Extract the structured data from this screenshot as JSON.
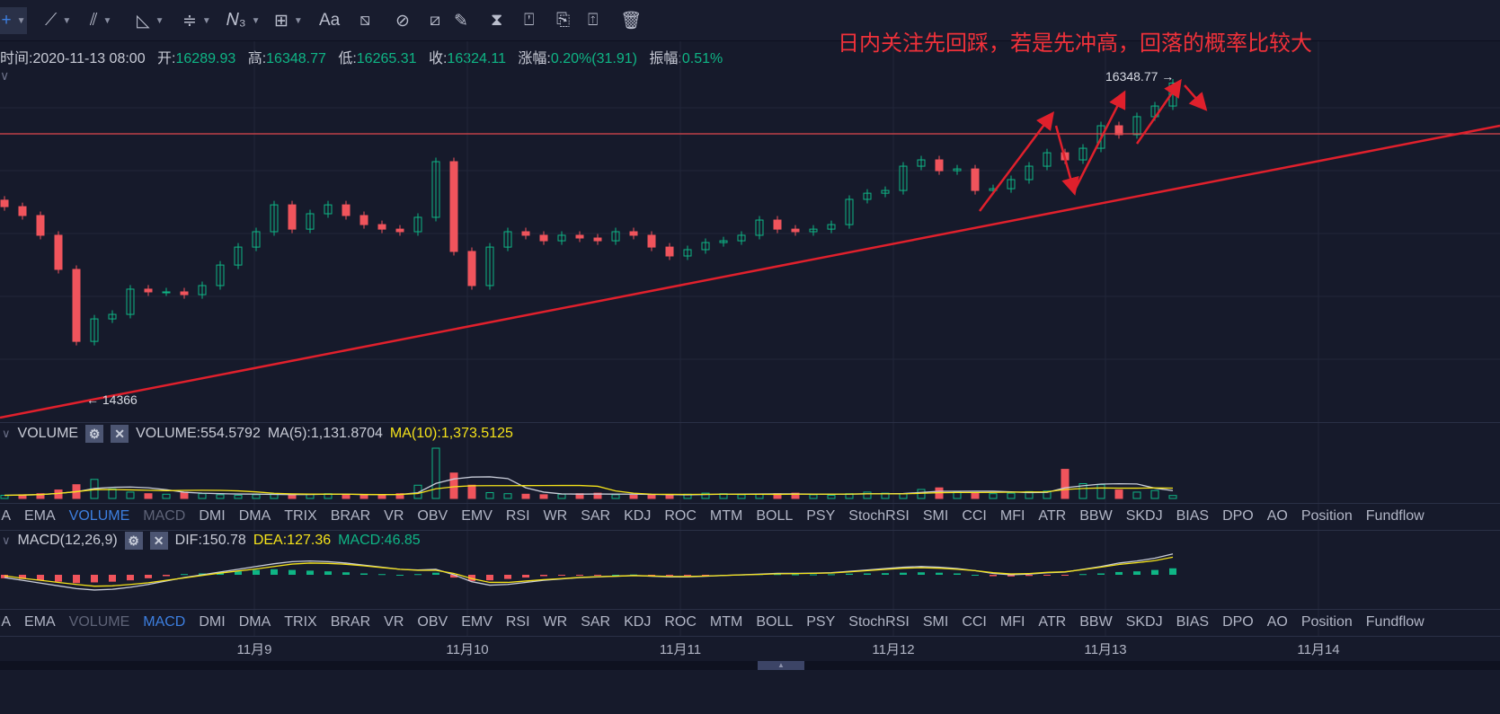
{
  "toolbar": {
    "tools": [
      {
        "name": "crosshair-icon",
        "glyph": "+",
        "active": true,
        "caret": true
      },
      {
        "name": "trendline-icon",
        "glyph": "⟋",
        "caret": true
      },
      {
        "name": "parallel-channel-icon",
        "glyph": "⫽",
        "caret": true
      },
      {
        "name": "triangle-ruler-icon",
        "glyph": "◺",
        "caret": true
      },
      {
        "name": "horizontal-lines-icon",
        "glyph": "≑",
        "caret": true
      },
      {
        "name": "wave-pattern-icon",
        "glyph": "𝑁₃",
        "caret": true
      },
      {
        "name": "rectangle-icon",
        "glyph": "⊞",
        "caret": true
      },
      {
        "name": "text-icon",
        "glyph": "Aa"
      },
      {
        "name": "price-range-icon",
        "glyph": "⧅"
      },
      {
        "name": "eraser-icon",
        "glyph": "⊘"
      },
      {
        "name": "ruler-icon",
        "glyph": "⧄"
      },
      {
        "name": "brush-icon",
        "glyph": "✎"
      },
      {
        "name": "candle-tool-icon",
        "glyph": "⧗"
      },
      {
        "name": "lock-icon",
        "glyph": "⍞"
      },
      {
        "name": "bookmark-icon",
        "glyph": "⎘"
      },
      {
        "name": "edit-note-icon",
        "glyph": "⍐"
      },
      {
        "name": "trash-icon",
        "glyph": "🗑"
      }
    ]
  },
  "info": {
    "time_label": "时间:",
    "time": "2020-11-13 08:00",
    "open_label": "开:",
    "open": "16289.93",
    "high_label": "高:",
    "high": "16348.77",
    "low_label": "低:",
    "low": "16265.31",
    "close_label": "收:",
    "close": "16324.11",
    "change_label": "涨幅:",
    "change": "0.20%(31.91)",
    "amp_label": "振幅:",
    "amp": "0.51%"
  },
  "annotation": "日内关注先回踩，若是先冲高，回落的概率比较大",
  "colors": {
    "up": "#0fb585",
    "down": "#f0545c",
    "drawing": "#e0202c",
    "bg": "#161a2b",
    "ma5": "#c9cdd9",
    "ma10": "#f5e31a"
  },
  "main": {
    "high_marker": "16348.77",
    "low_marker": "14366",
    "horizontal_level": 16010,
    "closes": [
      15560,
      15505,
      15383,
      15172,
      14727,
      14866,
      14894,
      15050,
      15033,
      15033,
      15016,
      15072,
      15199,
      15310,
      15405,
      15571,
      15421,
      15516,
      15571,
      15505,
      15449,
      15421,
      15405,
      15494,
      15838,
      15283,
      15072,
      15310,
      15405,
      15383,
      15349,
      15383,
      15366,
      15349,
      15405,
      15383,
      15310,
      15255,
      15294,
      15338,
      15349,
      15383,
      15477,
      15421,
      15405,
      15421,
      15449,
      15605,
      15643,
      15660,
      15810,
      15849,
      15782,
      15793,
      15660,
      15671,
      15727,
      15810,
      15893,
      15849,
      15921,
      16060,
      16005,
      16116,
      16182,
      16324.11
    ]
  },
  "volume": {
    "title": "VOLUME",
    "value": "VOLUME:554.5792",
    "ma5": "MA(5):1,131.8704",
    "ma10": "MA(10):1,373.5125",
    "values": [
      600,
      700,
      900,
      1600,
      2600,
      3600,
      1800,
      1200,
      900,
      800,
      1200,
      900,
      700,
      600,
      700,
      900,
      700,
      800,
      900,
      700,
      600,
      700,
      900,
      2500,
      9500,
      4800,
      2500,
      1100,
      900,
      800,
      700,
      800,
      900,
      1000,
      700,
      600,
      600,
      700,
      800,
      1000,
      900,
      700,
      800,
      900,
      1000,
      700,
      600,
      900,
      1200,
      1000,
      900,
      1700,
      2000,
      1200,
      1100,
      900,
      1000,
      1300,
      1400,
      5500,
      2800,
      2600,
      1600,
      1200,
      1500,
      554.58
    ]
  },
  "macd": {
    "title": "MACD(12,26,9)",
    "dif_label": "DIF:150.78",
    "dea_label": "DEA:127.36",
    "macd_label": "MACD:46.85",
    "hist": [
      -25,
      -30,
      -40,
      -50,
      -60,
      -55,
      -50,
      -40,
      -25,
      -10,
      5,
      10,
      15,
      25,
      35,
      40,
      35,
      30,
      25,
      18,
      10,
      5,
      0,
      5,
      15,
      -20,
      -45,
      -40,
      -30,
      -20,
      -10,
      -5,
      -3,
      -2,
      0,
      2,
      -3,
      -6,
      -5,
      -2,
      0,
      2,
      5,
      5,
      3,
      3,
      4,
      8,
      10,
      12,
      15,
      18,
      15,
      10,
      0,
      -10,
      -12,
      -8,
      -5,
      -3,
      5,
      10,
      20,
      25,
      35,
      46.85
    ],
    "dif": [
      -20,
      -40,
      -60,
      -80,
      -100,
      -110,
      -105,
      -90,
      -70,
      -45,
      -20,
      0,
      20,
      40,
      60,
      80,
      95,
      100,
      95,
      85,
      70,
      55,
      40,
      35,
      40,
      0,
      -50,
      -75,
      -70,
      -55,
      -40,
      -30,
      -20,
      -15,
      -10,
      -5,
      -10,
      -15,
      -15,
      -10,
      -5,
      0,
      5,
      10,
      10,
      12,
      15,
      25,
      35,
      45,
      55,
      60,
      55,
      45,
      30,
      10,
      0,
      5,
      15,
      20,
      40,
      60,
      85,
      100,
      120,
      150.78
    ],
    "dea": [
      -7.5,
      -25,
      -40,
      -55,
      -70,
      -82.5,
      -80,
      -70,
      -57.5,
      -40,
      -22.5,
      -5,
      12.5,
      27.5,
      42.5,
      60,
      77.5,
      85,
      82.5,
      76,
      65,
      52.5,
      40,
      32.5,
      32.5,
      10,
      -27.5,
      -55,
      -55,
      -45,
      -35,
      -27.5,
      -18.5,
      -14,
      -10,
      -6,
      -8.5,
      -12,
      -12.5,
      -9,
      -5,
      -1,
      2.5,
      7.5,
      8.5,
      10.5,
      13,
      21,
      30,
      39,
      47.5,
      51,
      47.5,
      40,
      30,
      15,
      6,
      9,
      17.5,
      21.5,
      37.5,
      55,
      75,
      87.5,
      102.5,
      127.36
    ]
  },
  "indicator_tabs": [
    "MA",
    "EMA",
    "VOLUME",
    "MACD",
    "DMI",
    "DMA",
    "TRIX",
    "BRAR",
    "VR",
    "OBV",
    "EMV",
    "RSI",
    "WR",
    "SAR",
    "KDJ",
    "ROC",
    "MTM",
    "BOLL",
    "PSY",
    "StochRSI",
    "SMI",
    "CCI",
    "MFI",
    "ATR",
    "BBW",
    "SKDJ",
    "BIAS",
    "DPO",
    "AO",
    "Position",
    "Fundflow"
  ],
  "dates": [
    "11月9",
    "11月10",
    "11月11",
    "11月12",
    "11月13",
    "11月14"
  ]
}
